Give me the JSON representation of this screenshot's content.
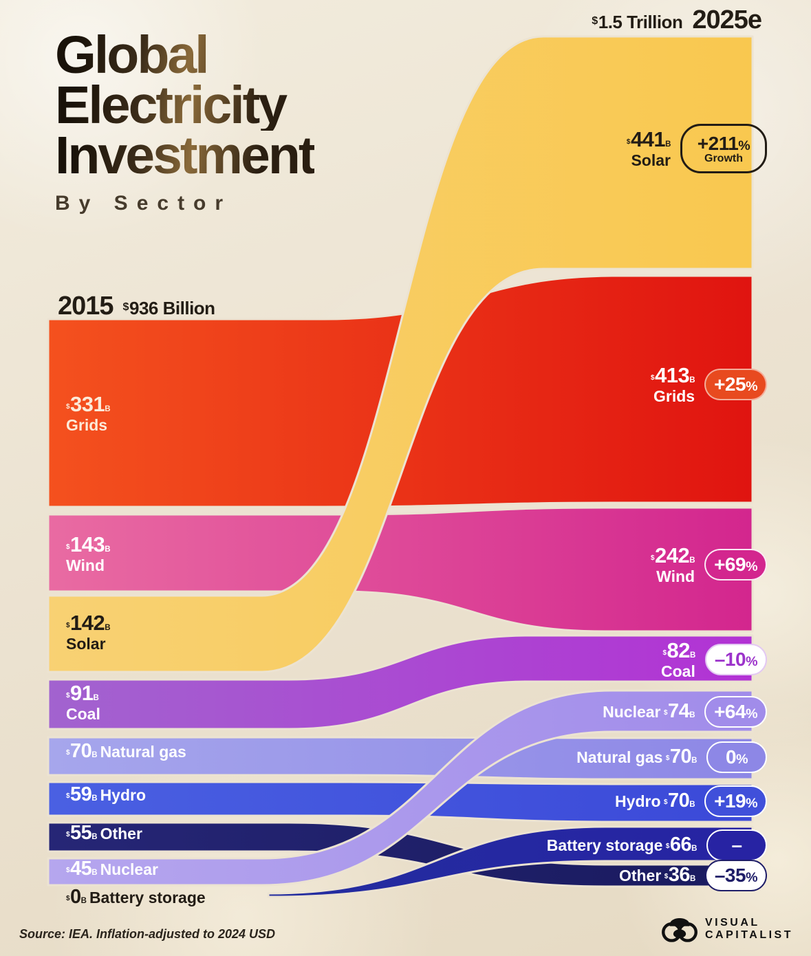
{
  "header": {
    "title_line1": "Global",
    "title_line2": "Electricity",
    "title_line3": "Investment",
    "subtitle": "By Sector"
  },
  "left_axis": {
    "year": "2015",
    "cur": "$",
    "total": "936 Billion"
  },
  "right_axis": {
    "cur": "$",
    "total": "1.5 Trillion",
    "year": "2025e"
  },
  "source": "Source: IEA. Inflation-adjusted to 2024 USD",
  "logo": {
    "line1": "VISUAL",
    "line2": "CAPITALIST"
  },
  "sectors": {
    "grids": {
      "name": "Grids",
      "cur": "$",
      "suf": "B",
      "left_num": "331",
      "right_num": "413",
      "pill_main": "+25",
      "pill_pct": "%"
    },
    "wind": {
      "name": "Wind",
      "cur": "$",
      "suf": "B",
      "left_num": "143",
      "right_num": "242",
      "pill_main": "+69",
      "pill_pct": "%"
    },
    "solar": {
      "name": "Solar",
      "cur": "$",
      "suf": "B",
      "left_num": "142",
      "right_num": "441",
      "pill_main": "+211",
      "pill_pct": "%",
      "pill_sub": "Growth"
    },
    "coal": {
      "name": "Coal",
      "cur": "$",
      "suf": "B",
      "left_num": "91",
      "right_num": "82",
      "pill_main": "–10",
      "pill_pct": "%"
    },
    "gas": {
      "name": "Natural gas",
      "cur": "$",
      "suf": "B",
      "left_num": "70",
      "right_num": "70",
      "pill_main": "0",
      "pill_pct": "%"
    },
    "hydro": {
      "name": "Hydro",
      "cur": "$",
      "suf": "B",
      "left_num": "59",
      "right_num": "70",
      "pill_main": "+19",
      "pill_pct": "%"
    },
    "other": {
      "name": "Other",
      "cur": "$",
      "suf": "B",
      "left_num": "55",
      "right_num": "36",
      "pill_main": "–35",
      "pill_pct": "%"
    },
    "nuclear": {
      "name": "Nuclear",
      "cur": "$",
      "suf": "B",
      "left_num": "45",
      "right_num": "74",
      "pill_main": "+64",
      "pill_pct": "%"
    },
    "battery": {
      "name": "Battery storage",
      "cur": "$",
      "suf": "B",
      "left_num": "0",
      "right_num": "66",
      "pill_main": "–",
      "pill_pct": ""
    }
  },
  "chart_data": {
    "type": "sankey",
    "title": "Global Electricity Investment By Sector",
    "unit": "billion USD, inflation-adjusted to 2024 USD",
    "left_label": "2015",
    "right_label": "2025e",
    "left_total_billion": 936,
    "right_total_billion": 1500,
    "left_total_text": "$936 Billion",
    "right_total_text": "$1.5 Trillion",
    "flows": [
      {
        "id": "grids",
        "sector": "Grids",
        "v2015": 331,
        "v2025": 413,
        "change": "+25%",
        "color_left": "#f4511e",
        "color_right": "#e01410"
      },
      {
        "id": "wind",
        "sector": "Wind",
        "v2015": 143,
        "v2025": 242,
        "change": "+69%",
        "color_left": "#e96ba2",
        "color_right": "#d3268e"
      },
      {
        "id": "solar",
        "sector": "Solar",
        "v2015": 142,
        "v2025": 441,
        "change": "+211%",
        "color_left": "#f8d173",
        "color_right": "#f9c84f"
      },
      {
        "id": "coal",
        "sector": "Coal",
        "v2015": 91,
        "v2025": 82,
        "change": "-10%",
        "color_left": "#a263cf",
        "color_right": "#b232d4"
      },
      {
        "id": "gas",
        "sector": "Natural gas",
        "v2015": 70,
        "v2025": 70,
        "change": "0%",
        "color_left": "#a6a6ec",
        "color_right": "#8d87e6"
      },
      {
        "id": "hydro",
        "sector": "Hydro",
        "v2015": 59,
        "v2025": 70,
        "change": "+19%",
        "color_left": "#4a60e2",
        "color_right": "#3b49d8"
      },
      {
        "id": "other",
        "sector": "Other",
        "v2015": 55,
        "v2025": 36,
        "change": "-35%",
        "color_left": "#262676",
        "color_right": "#191a5e"
      },
      {
        "id": "nuclear",
        "sector": "Nuclear",
        "v2015": 45,
        "v2025": 74,
        "change": "+64%",
        "color_left": "#b5a6ee",
        "color_right": "#a18cea"
      },
      {
        "id": "battery",
        "sector": "Battery storage",
        "v2015": 0,
        "v2025": 66,
        "change": "–",
        "color_left": "#232d9f",
        "color_right": "#2723a3"
      }
    ],
    "legend_position": "on-band labels",
    "grid": false
  }
}
